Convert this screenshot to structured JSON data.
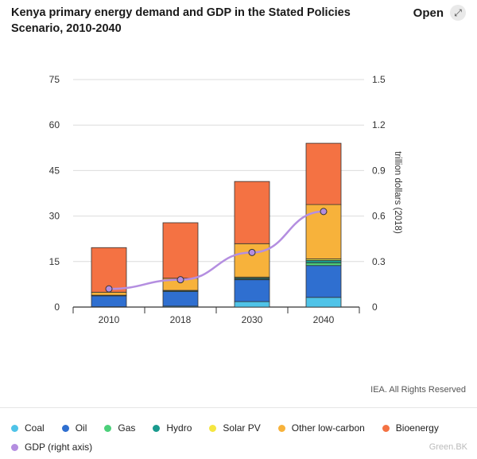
{
  "header": {
    "title": "Kenya primary energy demand and GDP in the Stated Policies Scenario, 2010-2040",
    "open_label": "Open",
    "open_icon": "expand-arrow-icon"
  },
  "copyright": "IEA. All Rights Reserved",
  "watermark": "Green.BK",
  "chart_data": {
    "type": "bar",
    "stacked": true,
    "categories": [
      "2010",
      "2018",
      "2030",
      "2040"
    ],
    "ylim": [
      0,
      75
    ],
    "yticks": [
      "0",
      "15",
      "30",
      "45",
      "60",
      "75"
    ],
    "y2lim": [
      0,
      1.5
    ],
    "y2ticks": [
      "0",
      "0.3",
      "0.6",
      "0.9",
      "1.2",
      "1.5"
    ],
    "y2label": "trillion dollars (2018)",
    "grid": true,
    "legend_position": "bottom",
    "series": [
      {
        "name": "Coal",
        "color": "#4fc3e8",
        "values": [
          0.1,
          0.3,
          1.8,
          3.2
        ]
      },
      {
        "name": "Oil",
        "color": "#2f6fd0",
        "values": [
          3.6,
          4.8,
          7.2,
          10.5
        ]
      },
      {
        "name": "Gas",
        "color": "#4cd07a",
        "values": [
          0,
          0,
          0.2,
          0.9
        ]
      },
      {
        "name": "Hydro",
        "color": "#1a9a8e",
        "values": [
          0.2,
          0.3,
          0.4,
          0.8
        ]
      },
      {
        "name": "Solar PV",
        "color": "#f5e641",
        "values": [
          0,
          0.1,
          0.3,
          0.5
        ]
      },
      {
        "name": "Other low-carbon",
        "color": "#f7b23b",
        "values": [
          1.0,
          4.0,
          11.0,
          17.9
        ]
      },
      {
        "name": "Bioenergy",
        "color": "#f47243",
        "values": [
          14.7,
          18.3,
          20.5,
          20.2
        ]
      }
    ],
    "line_series": {
      "name": "GDP (right axis)",
      "color": "#b48ee0",
      "axis": "right",
      "values": [
        0.12,
        0.18,
        0.36,
        0.63
      ]
    }
  }
}
